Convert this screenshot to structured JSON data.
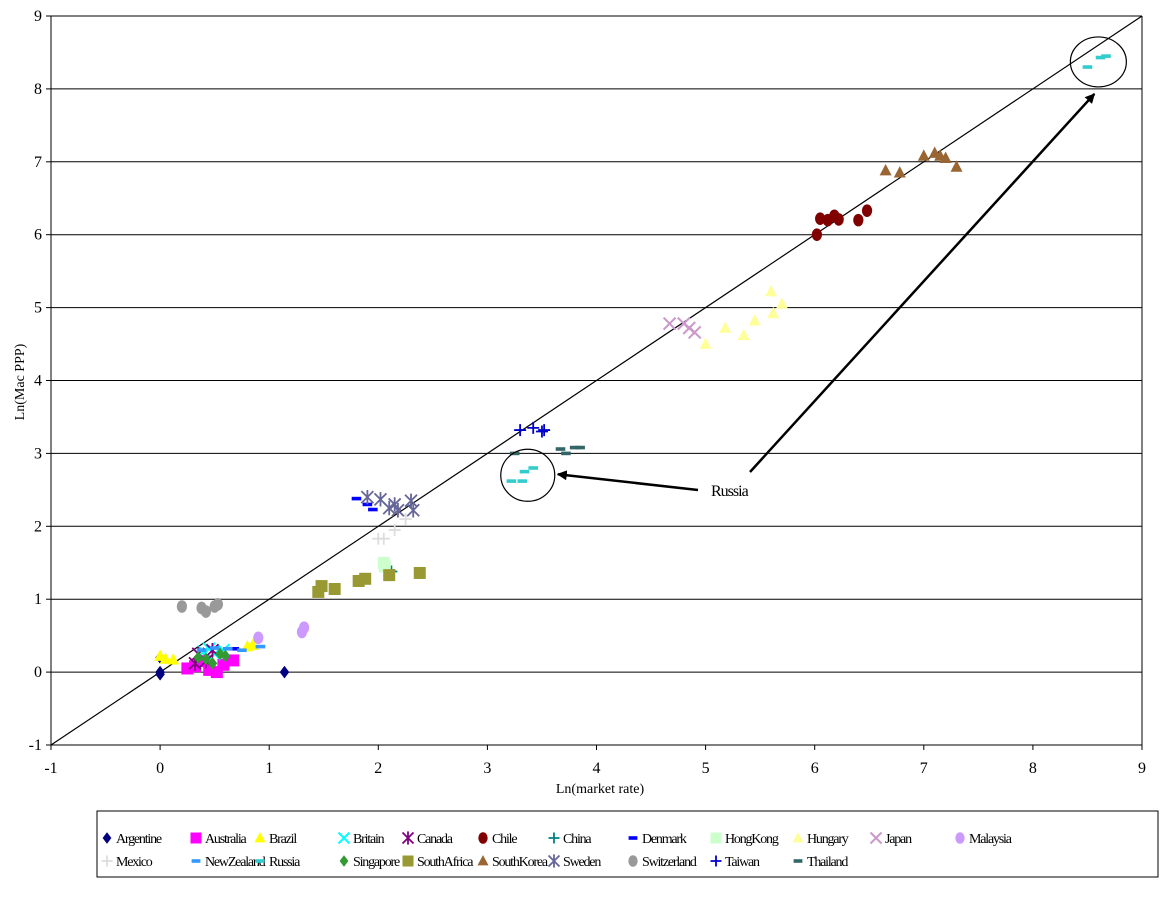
{
  "chart_data": {
    "type": "scatter",
    "title": "",
    "xlabel": "Ln(market rate)",
    "ylabel": "Ln(Mac PPP)",
    "xlim": [
      -1,
      9
    ],
    "ylim": [
      -1,
      9
    ],
    "xticks": [
      "-1",
      "0",
      "1",
      "2",
      "3",
      "4",
      "5",
      "6",
      "7",
      "8",
      "9"
    ],
    "yticks": [
      "-1",
      "0",
      "1",
      "2",
      "3",
      "4",
      "5",
      "6",
      "7",
      "8",
      "9"
    ],
    "grid": "horizontal",
    "legend_position": "bottom",
    "reference_line": {
      "x": [
        -1,
        9
      ],
      "y": [
        -1,
        9
      ]
    },
    "annotations": [
      {
        "text": "Russia",
        "circles": [
          {
            "x": 3.37,
            "y": 2.7
          },
          {
            "x": 8.6,
            "y": 8.37
          }
        ]
      }
    ],
    "series": [
      {
        "name": "Argentine",
        "marker": "diamond",
        "color": "#000080",
        "x": [
          0,
          0,
          0,
          1.14
        ],
        "y": [
          0,
          -0.03,
          0.2,
          0
        ]
      },
      {
        "name": "Australia",
        "marker": "square",
        "color": "#ff00ff",
        "x": [
          0.25,
          0.32,
          0.4,
          0.45,
          0.52,
          0.58,
          0.67
        ],
        "y": [
          0.05,
          0.08,
          0.15,
          0.03,
          0.0,
          0.1,
          0.16
        ]
      },
      {
        "name": "Brazil",
        "marker": "triangle",
        "color": "#ffff00",
        "x": [
          0,
          0.05,
          0.12,
          0.8,
          0.85
        ],
        "y": [
          0.22,
          0.18,
          0.17,
          0.35,
          0.37
        ]
      },
      {
        "name": "Britain",
        "marker": "x",
        "color": "#00ffff",
        "x": [
          0.4,
          0.45,
          0.5,
          0.58
        ],
        "y": [
          0.28,
          0.32,
          0.25,
          0.3
        ]
      },
      {
        "name": "Canada",
        "marker": "star",
        "color": "#800080",
        "x": [
          0.32,
          0.35,
          0.42,
          0.48
        ],
        "y": [
          0.12,
          0.25,
          0.15,
          0.3
        ]
      },
      {
        "name": "Chile",
        "marker": "circle",
        "color": "#800000",
        "x": [
          6.02,
          6.05,
          6.12,
          6.18,
          6.22,
          6.4,
          6.48
        ],
        "y": [
          6.0,
          6.22,
          6.2,
          6.26,
          6.21,
          6.2,
          6.33
        ]
      },
      {
        "name": "China",
        "marker": "plus",
        "color": "#008080",
        "x": [
          2.1,
          2.12
        ],
        "y": [
          1.4,
          1.38
        ]
      },
      {
        "name": "Denmark",
        "marker": "dash",
        "color": "#0000ff",
        "x": [
          0.68,
          1.8,
          1.9,
          1.95
        ],
        "y": [
          0.32,
          2.38,
          2.3,
          2.23
        ]
      },
      {
        "name": "HongKong",
        "marker": "square",
        "color": "#ccffcc",
        "x": [
          2.05,
          2.06
        ],
        "y": [
          1.5,
          1.45
        ]
      },
      {
        "name": "Hungary",
        "marker": "triangle",
        "color": "#ffff99",
        "x": [
          5.0,
          5.18,
          5.35,
          5.45,
          5.6,
          5.62,
          5.7
        ],
        "y": [
          4.5,
          4.72,
          4.62,
          4.82,
          5.22,
          4.92,
          5.05
        ]
      },
      {
        "name": "Japan",
        "marker": "x",
        "color": "#cc99cc",
        "x": [
          4.67,
          4.8,
          4.85,
          4.9
        ],
        "y": [
          4.78,
          4.78,
          4.72,
          4.66
        ]
      },
      {
        "name": "Malaysia",
        "marker": "circle",
        "color": "#cc99ff",
        "x": [
          0.9,
          1.3,
          1.32
        ],
        "y": [
          0.47,
          0.55,
          0.61
        ]
      },
      {
        "name": "Mexico",
        "marker": "plus",
        "color": "#dddddd",
        "x": [
          2.0,
          2.05,
          2.15,
          2.25
        ],
        "y": [
          1.83,
          1.83,
          1.95,
          2.1
        ]
      },
      {
        "name": "NewZealand",
        "marker": "dash",
        "color": "#3399ff",
        "x": [
          0.38,
          0.5,
          0.62,
          0.75,
          0.92
        ],
        "y": [
          0.3,
          0.33,
          0.32,
          0.3,
          0.35
        ]
      },
      {
        "name": "Russia",
        "marker": "dash",
        "color": "#33cccc",
        "x": [
          3.22,
          3.32,
          3.34,
          3.42,
          8.5,
          8.62,
          8.67
        ],
        "y": [
          2.62,
          2.62,
          2.75,
          2.8,
          8.3,
          8.43,
          8.45
        ]
      },
      {
        "name": "Singapore",
        "marker": "diamond",
        "color": "#339933",
        "x": [
          0.35,
          0.42,
          0.48,
          0.55,
          0.6
        ],
        "y": [
          0.2,
          0.18,
          0.12,
          0.25,
          0.22
        ]
      },
      {
        "name": "SouthAfrica",
        "marker": "square",
        "color": "#999933",
        "x": [
          1.45,
          1.48,
          1.6,
          1.82,
          1.88,
          2.1,
          2.38
        ],
        "y": [
          1.1,
          1.18,
          1.14,
          1.25,
          1.28,
          1.33,
          1.36
        ]
      },
      {
        "name": "SouthKorea",
        "marker": "triangle",
        "color": "#996633",
        "x": [
          6.65,
          6.78,
          7.0,
          7.1,
          7.15,
          7.2,
          7.3
        ],
        "y": [
          6.88,
          6.85,
          7.08,
          7.12,
          7.08,
          7.05,
          6.93
        ]
      },
      {
        "name": "Sweden",
        "marker": "star",
        "color": "#666699",
        "x": [
          1.9,
          2.02,
          2.1,
          2.15,
          2.18,
          2.3,
          2.32
        ],
        "y": [
          2.4,
          2.37,
          2.25,
          2.3,
          2.22,
          2.35,
          2.22
        ]
      },
      {
        "name": "Switzerland",
        "marker": "circle",
        "color": "#999999",
        "x": [
          0.2,
          0.38,
          0.42,
          0.5,
          0.53
        ],
        "y": [
          0.9,
          0.88,
          0.83,
          0.9,
          0.93
        ]
      },
      {
        "name": "Taiwan",
        "marker": "plus",
        "color": "#0000cc",
        "x": [
          3.3,
          3.42,
          3.5,
          3.52
        ],
        "y": [
          3.32,
          3.35,
          3.3,
          3.32
        ]
      },
      {
        "name": "Thailand",
        "marker": "dash",
        "color": "#336666",
        "x": [
          3.25,
          3.67,
          3.72,
          3.8,
          3.85
        ],
        "y": [
          3.0,
          3.06,
          3.0,
          3.08,
          3.08
        ]
      }
    ]
  }
}
